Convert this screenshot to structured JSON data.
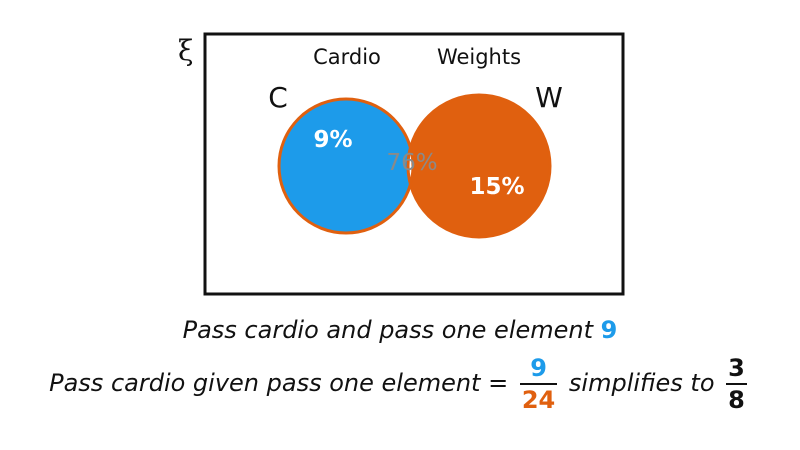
{
  "venn": {
    "universal_symbol": "ξ",
    "sets": [
      {
        "letter": "C",
        "name": "Cardio",
        "only_value": "9%",
        "color": "#1d9bea"
      },
      {
        "letter": "W",
        "name": "Weights",
        "only_value": "15%",
        "color": "#e0600f"
      }
    ],
    "intersection_value": "76%",
    "outline_color": "#111111",
    "intersection_text_color": "#8a8a8a"
  },
  "text": {
    "line1_prefix": "Pass cardio and pass one element",
    "line1_value": "9",
    "line2_prefix": "Pass cardio given pass one element =",
    "fraction1_num": "9",
    "fraction1_den": "24",
    "line2_middle": "simplifies to",
    "fraction2_num": "3",
    "fraction2_den": "8"
  },
  "colors": {
    "cardio_blue": "#1d9bea",
    "weights_orange": "#e0600f"
  }
}
